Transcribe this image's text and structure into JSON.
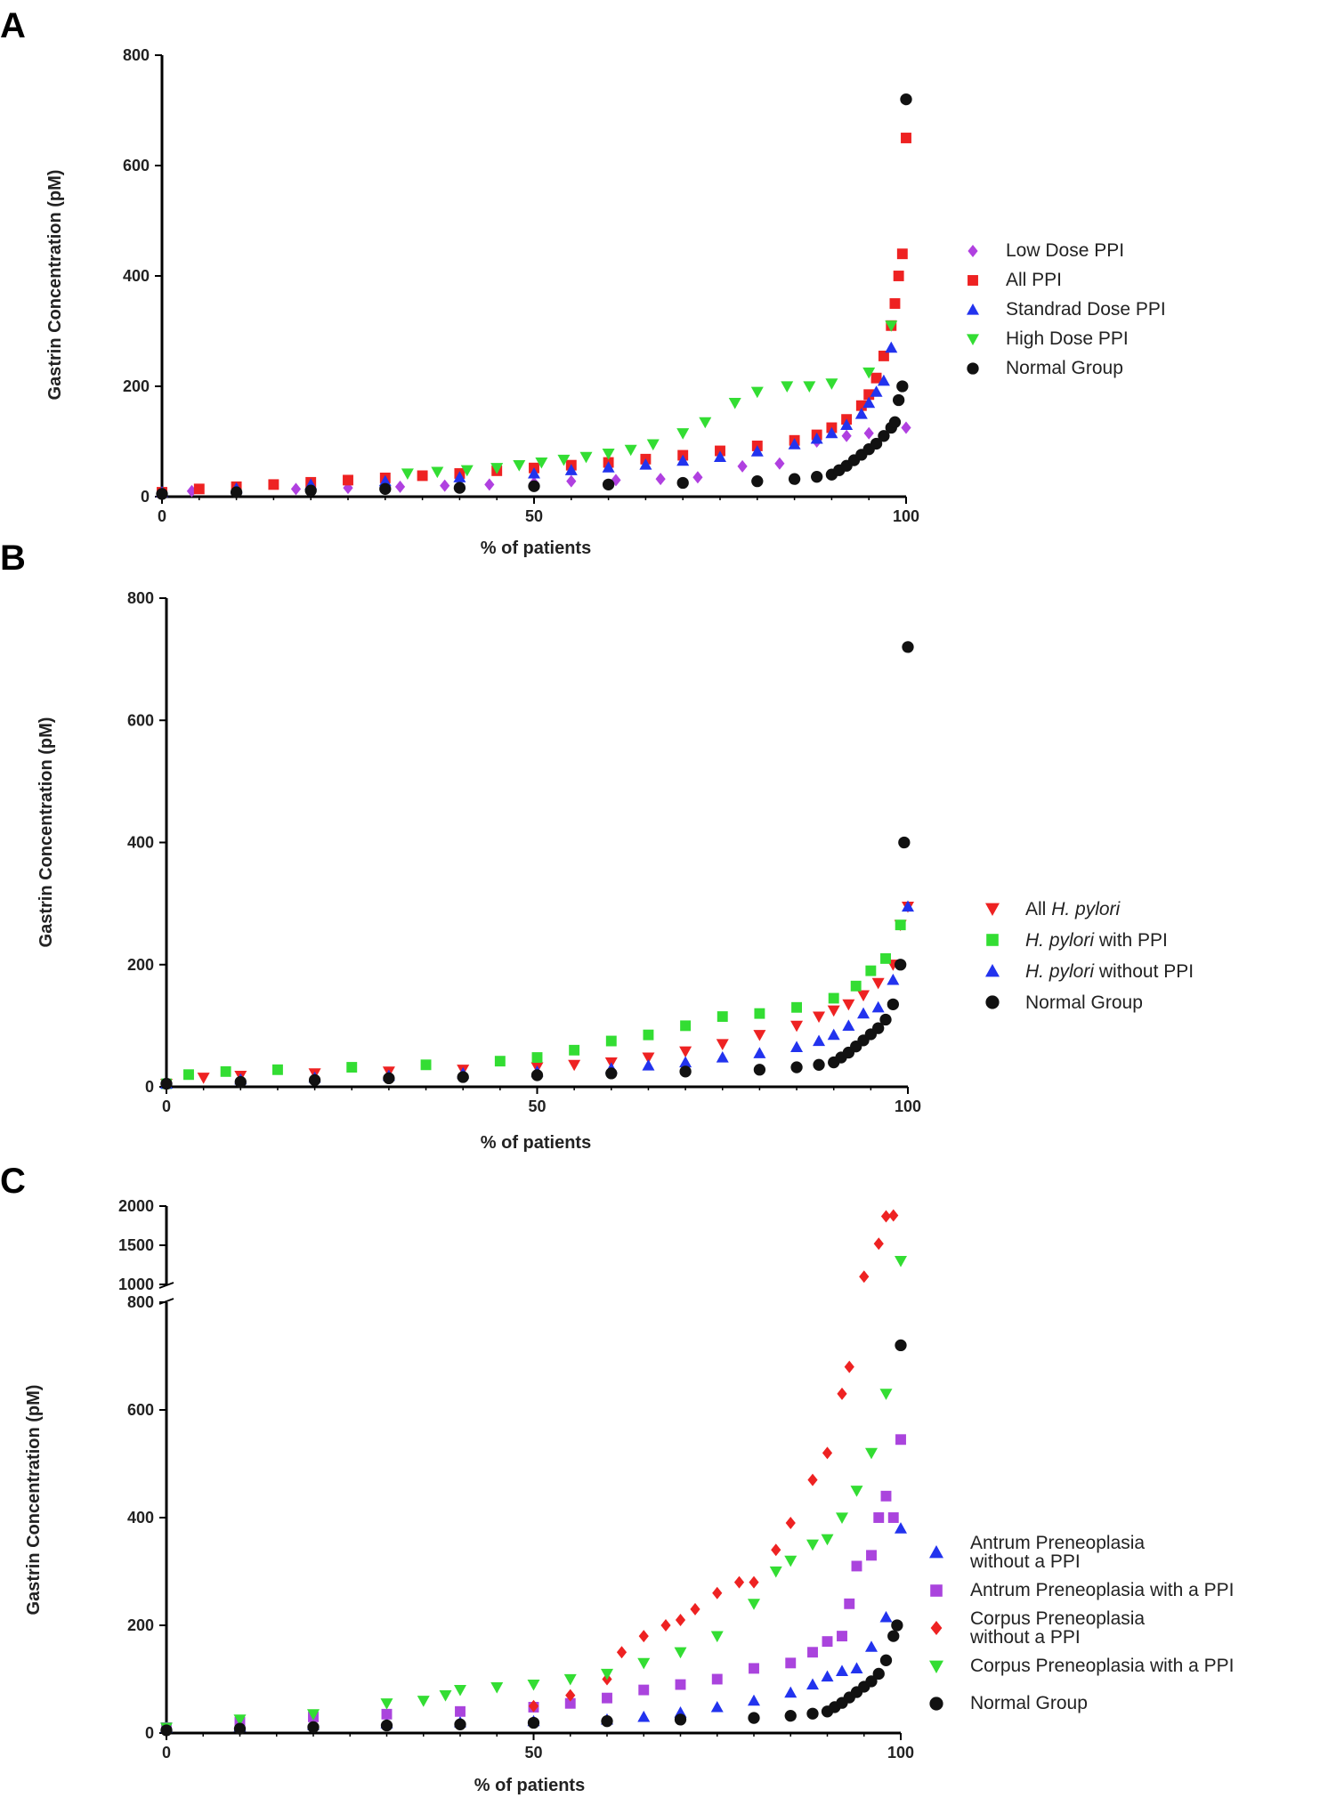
{
  "figure": {
    "panel_letters": [
      "A",
      "B",
      "C"
    ]
  },
  "chart_data": [
    {
      "type": "scatter",
      "panel": "A",
      "xlabel": "% of patients",
      "ylabel": "Gastrin Concentration (pM)",
      "xlim": [
        0,
        100
      ],
      "ylim": [
        0,
        800
      ],
      "xticks": [
        0,
        50,
        100
      ],
      "yticks": [
        0,
        200,
        400,
        600,
        800
      ],
      "legend_position": "right",
      "series": [
        {
          "name": "Low Dose PPI",
          "color": "#b040e0",
          "marker": "diamond",
          "x": [
            4,
            10,
            18,
            25,
            32,
            38,
            44,
            50,
            55,
            61,
            67,
            72,
            78,
            83,
            88,
            92,
            95,
            100
          ],
          "y": [
            10,
            12,
            14,
            16,
            18,
            20,
            22,
            25,
            28,
            30,
            32,
            35,
            55,
            60,
            100,
            110,
            115,
            125
          ]
        },
        {
          "name": "All PPI",
          "color": "#ee2222",
          "marker": "square",
          "x": [
            0,
            5,
            10,
            15,
            20,
            25,
            30,
            35,
            40,
            45,
            50,
            55,
            60,
            65,
            70,
            75,
            80,
            85,
            88,
            90,
            92,
            94,
            95,
            96,
            97,
            98,
            98.5,
            99,
            99.5,
            100
          ],
          "y": [
            8,
            14,
            18,
            22,
            26,
            30,
            34,
            38,
            42,
            47,
            52,
            57,
            62,
            68,
            75,
            83,
            92,
            102,
            112,
            125,
            140,
            165,
            185,
            215,
            255,
            310,
            350,
            400,
            440,
            650
          ]
        },
        {
          "name": "Standrad Dose PPI",
          "color": "#2233ee",
          "marker": "triangle-up",
          "x": [
            0,
            10,
            20,
            30,
            40,
            50,
            55,
            60,
            65,
            70,
            75,
            80,
            85,
            88,
            90,
            92,
            94,
            95,
            96,
            97,
            98
          ],
          "y": [
            8,
            15,
            22,
            28,
            35,
            42,
            48,
            53,
            58,
            65,
            72,
            82,
            95,
            105,
            115,
            130,
            150,
            170,
            190,
            210,
            270
          ]
        },
        {
          "name": "High Dose PPI",
          "color": "#33dd33",
          "marker": "triangle-down",
          "x": [
            33,
            37,
            41,
            45,
            48,
            51,
            54,
            57,
            60,
            63,
            66,
            70,
            73,
            77,
            80,
            84,
            87,
            90,
            95,
            98
          ],
          "y": [
            42,
            45,
            48,
            52,
            57,
            62,
            67,
            72,
            78,
            85,
            95,
            115,
            135,
            170,
            190,
            200,
            200,
            205,
            225,
            310
          ]
        },
        {
          "name": "Normal Group",
          "color": "#111111",
          "marker": "circle",
          "x": [
            0,
            10,
            20,
            30,
            40,
            50,
            60,
            70,
            80,
            85,
            88,
            90,
            91,
            92,
            93,
            94,
            95,
            96,
            97,
            98,
            98.5,
            99,
            99.5,
            100
          ],
          "y": [
            5,
            8,
            11,
            14,
            16,
            19,
            22,
            25,
            28,
            32,
            36,
            40,
            48,
            56,
            66,
            76,
            86,
            96,
            110,
            125,
            135,
            175,
            200,
            720
          ]
        }
      ]
    },
    {
      "type": "scatter",
      "panel": "B",
      "xlabel": "% of patients",
      "ylabel": "Gastrin Concentration (pM)",
      "xlim": [
        0,
        100
      ],
      "ylim": [
        0,
        800
      ],
      "xticks": [
        0,
        50,
        100
      ],
      "yticks": [
        0,
        200,
        400,
        600,
        800
      ],
      "legend_position": "right",
      "series": [
        {
          "name": "All",
          "name_italic": "H. pylori",
          "name_suffix": "",
          "color": "#ee2222",
          "marker": "triangle-down",
          "x": [
            0,
            5,
            10,
            20,
            30,
            40,
            50,
            55,
            60,
            65,
            70,
            75,
            80,
            85,
            88,
            90,
            92,
            94,
            96,
            98,
            99,
            100
          ],
          "y": [
            5,
            15,
            18,
            22,
            25,
            28,
            32,
            36,
            40,
            48,
            58,
            70,
            85,
            100,
            115,
            125,
            135,
            150,
            170,
            200,
            265,
            295
          ]
        },
        {
          "name": "",
          "name_italic": "H. pylori",
          "name_suffix": " with PPI",
          "color": "#33dd33",
          "marker": "square",
          "x": [
            0,
            3,
            8,
            15,
            25,
            35,
            45,
            50,
            55,
            60,
            65,
            70,
            75,
            80,
            85,
            90,
            93,
            95,
            97,
            99
          ],
          "y": [
            5,
            20,
            25,
            28,
            32,
            36,
            42,
            48,
            60,
            75,
            85,
            100,
            115,
            120,
            130,
            145,
            165,
            190,
            210,
            265
          ]
        },
        {
          "name": "",
          "name_italic": "H. pylori",
          "name_suffix": " without PPI",
          "color": "#2233ee",
          "marker": "triangle-up",
          "x": [
            0,
            10,
            20,
            30,
            40,
            50,
            60,
            65,
            70,
            75,
            80,
            85,
            88,
            90,
            92,
            94,
            96,
            98,
            100
          ],
          "y": [
            5,
            12,
            15,
            18,
            22,
            25,
            30,
            35,
            40,
            48,
            55,
            65,
            75,
            85,
            100,
            120,
            130,
            175,
            295
          ]
        },
        {
          "name": "Normal Group",
          "name_italic": "",
          "name_suffix": "",
          "color": "#111111",
          "marker": "circle",
          "x": [
            0,
            10,
            20,
            30,
            40,
            50,
            60,
            70,
            80,
            85,
            88,
            90,
            91,
            92,
            93,
            94,
            95,
            96,
            97,
            98,
            99,
            99.5,
            100
          ],
          "y": [
            5,
            8,
            11,
            14,
            16,
            19,
            22,
            25,
            28,
            32,
            36,
            40,
            48,
            56,
            66,
            76,
            86,
            96,
            110,
            135,
            200,
            400,
            720
          ]
        }
      ]
    },
    {
      "type": "scatter",
      "panel": "C",
      "xlabel": "% of patients",
      "ylabel": "Gastrin Concentration (pM)",
      "xlim": [
        0,
        100
      ],
      "ylim_lower": [
        0,
        800
      ],
      "ylim_upper": [
        1000,
        2000
      ],
      "axis_break": true,
      "xticks": [
        0,
        50,
        100
      ],
      "yticks_lower": [
        0,
        200,
        400,
        600,
        800
      ],
      "yticks_upper": [
        1000,
        1500,
        2000
      ],
      "legend_position": "bottom-right",
      "series": [
        {
          "name": "Antrum Preneoplasia without a PPI",
          "legend_lines": [
            "Antrum Preneoplasia",
            "without a PPI"
          ],
          "color": "#2233ee",
          "marker": "triangle-up",
          "x": [
            0,
            10,
            20,
            30,
            40,
            50,
            60,
            65,
            70,
            75,
            80,
            85,
            88,
            90,
            92,
            94,
            96,
            98,
            100
          ],
          "y": [
            10,
            12,
            15,
            18,
            20,
            22,
            25,
            30,
            38,
            48,
            60,
            75,
            90,
            105,
            115,
            120,
            160,
            215,
            380
          ]
        },
        {
          "name": "Antrum Preneoplasia with a PPI",
          "legend_lines": [
            "Antrum Preneoplasia with a PPI"
          ],
          "color": "#aa44dd",
          "marker": "square",
          "x": [
            0,
            10,
            20,
            30,
            40,
            50,
            55,
            60,
            65,
            70,
            75,
            80,
            85,
            88,
            90,
            92,
            93,
            94,
            96,
            97,
            98,
            99,
            100
          ],
          "y": [
            10,
            20,
            30,
            35,
            40,
            48,
            55,
            65,
            80,
            90,
            100,
            120,
            130,
            150,
            170,
            180,
            240,
            310,
            330,
            400,
            440,
            400,
            545
          ]
        },
        {
          "name": "Corpus Preneoplasia without a PPI",
          "legend_lines": [
            "Corpus Preneoplasia",
            "without a PPI"
          ],
          "color": "#ee2222",
          "marker": "diamond",
          "x": [
            50,
            55,
            60,
            62,
            65,
            68,
            70,
            72,
            75,
            78,
            80,
            83,
            85,
            88,
            90,
            92,
            93,
            95,
            97,
            98,
            99
          ],
          "y": [
            50,
            70,
            100,
            150,
            180,
            200,
            210,
            230,
            260,
            280,
            280,
            340,
            390,
            470,
            520,
            630,
            680,
            1100,
            1520,
            1870,
            1880
          ]
        },
        {
          "name": "Corpus Preneoplasia with a PPI",
          "legend_lines": [
            "Corpus Preneoplasia with a PPI"
          ],
          "color": "#33dd33",
          "marker": "triangle-down",
          "x": [
            0,
            10,
            20,
            30,
            35,
            38,
            40,
            45,
            50,
            55,
            60,
            65,
            70,
            75,
            80,
            83,
            85,
            88,
            90,
            92,
            94,
            96,
            98,
            100
          ],
          "y": [
            10,
            25,
            35,
            55,
            60,
            70,
            80,
            85,
            90,
            100,
            110,
            130,
            150,
            180,
            240,
            300,
            320,
            350,
            360,
            400,
            450,
            520,
            630,
            1300
          ]
        },
        {
          "name": "Normal Group",
          "legend_lines": [
            "Normal Group"
          ],
          "color": "#111111",
          "marker": "circle",
          "x": [
            0,
            10,
            20,
            30,
            40,
            50,
            60,
            70,
            80,
            85,
            88,
            90,
            91,
            92,
            93,
            94,
            95,
            96,
            97,
            98,
            99,
            99.5,
            100
          ],
          "y": [
            5,
            8,
            11,
            14,
            16,
            19,
            22,
            25,
            28,
            32,
            36,
            40,
            48,
            56,
            66,
            76,
            86,
            96,
            110,
            135,
            180,
            200,
            720
          ]
        }
      ]
    }
  ]
}
